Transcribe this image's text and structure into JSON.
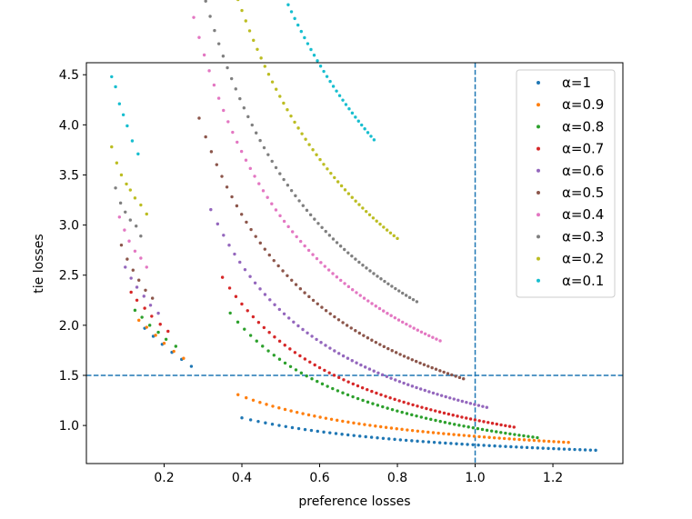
{
  "chart_data": {
    "type": "scatter",
    "title": "",
    "xlabel": "preference losses",
    "ylabel": "tie losses",
    "xlim": [
      0.0,
      1.38
    ],
    "ylim": [
      0.62,
      4.62
    ],
    "xticks": [
      0.2,
      0.4,
      0.6,
      0.8,
      1.0,
      1.2
    ],
    "yticks": [
      1.0,
      1.5,
      2.0,
      2.5,
      3.0,
      3.5,
      4.0,
      4.5
    ],
    "xtick_labels": [
      "0.2",
      "0.4",
      "0.6",
      "0.8",
      "1.0",
      "1.2"
    ],
    "ytick_labels": [
      "1.0",
      "1.5",
      "2.0",
      "2.5",
      "3.0",
      "3.5",
      "4.0",
      "4.5"
    ],
    "reference_lines": [
      {
        "orientation": "vertical",
        "value": 1.0,
        "style": "dashed",
        "color": "#1f77b4"
      },
      {
        "orientation": "horizontal",
        "value": 1.5,
        "style": "dashed",
        "color": "#1f77b4"
      }
    ],
    "legend_position": "top-right",
    "series": [
      {
        "name": "α=1",
        "color": "#1f77b4",
        "curve": {
          "a": 0.3,
          "b": 0.17,
          "c": 0.55,
          "x_start": 0.4,
          "x_end": 1.31
        }
      },
      {
        "name": "α=0.9",
        "color": "#ff7f0e",
        "curve": {
          "a": 0.38,
          "b": 0.112,
          "c": 0.55,
          "x_start": 0.39,
          "x_end": 1.24
        }
      },
      {
        "name": "α=0.8",
        "color": "#2ca02c",
        "curve": {
          "a": 0.7,
          "b": 0.01,
          "c": 0.28,
          "x_start": 0.37,
          "x_end": 1.16
        }
      },
      {
        "name": "α=0.7",
        "color": "#d62728",
        "curve": {
          "a": 0.82,
          "b": 0.018,
          "c": 0.25,
          "x_start": 0.35,
          "x_end": 1.1
        }
      },
      {
        "name": "α=0.6",
        "color": "#9467bd",
        "curve": {
          "a": 1.0,
          "b": 0.022,
          "c": 0.23,
          "x_start": 0.32,
          "x_end": 1.03
        }
      },
      {
        "name": "α=0.5",
        "color": "#8c564b",
        "curve": {
          "a": 1.28,
          "b": 0.041,
          "c": 0.2,
          "x_start": 0.29,
          "x_end": 0.97
        }
      },
      {
        "name": "α=0.4",
        "color": "#e377c2",
        "curve": {
          "a": 1.6,
          "b": 0.051,
          "c": 0.18,
          "x_start": 0.26,
          "x_end": 0.91
        }
      },
      {
        "name": "α=0.3",
        "color": "#7f7f7f",
        "curve": {
          "a": 1.83,
          "b": 0.058,
          "c": 0.22,
          "x_start": 0.23,
          "x_end": 0.85
        }
      },
      {
        "name": "α=0.2",
        "color": "#bcbd22",
        "curve": {
          "a": 2.25,
          "b": 0.06,
          "c": 0.25,
          "x_start": 0.2,
          "x_end": 0.8
        }
      },
      {
        "name": "α=0.1",
        "color": "#17becf",
        "curve": {
          "a": 2.92,
          "b": 0.071,
          "c": 0.25,
          "x_start": 0.2,
          "x_end": 0.74
        }
      }
    ],
    "stragglers": [
      {
        "series": "α=0.1",
        "points": [
          [
            0.065,
            4.48
          ],
          [
            0.075,
            4.38
          ],
          [
            0.085,
            4.21
          ],
          [
            0.095,
            4.1
          ],
          [
            0.105,
            3.99
          ],
          [
            0.118,
            3.84
          ],
          [
            0.133,
            3.71
          ]
        ]
      },
      {
        "series": "α=0.2",
        "points": [
          [
            0.065,
            3.78
          ],
          [
            0.078,
            3.62
          ],
          [
            0.09,
            3.5
          ],
          [
            0.103,
            3.41
          ],
          [
            0.113,
            3.35
          ],
          [
            0.125,
            3.27
          ],
          [
            0.14,
            3.2
          ],
          [
            0.155,
            3.11
          ]
        ]
      },
      {
        "series": "α=0.3",
        "points": [
          [
            0.075,
            3.37
          ],
          [
            0.088,
            3.22
          ],
          [
            0.1,
            3.13
          ],
          [
            0.113,
            3.05
          ],
          [
            0.128,
            2.99
          ],
          [
            0.14,
            2.89
          ]
        ]
      },
      {
        "series": "α=0.4",
        "points": [
          [
            0.085,
            3.08
          ],
          [
            0.098,
            2.95
          ],
          [
            0.11,
            2.84
          ],
          [
            0.125,
            2.74
          ],
          [
            0.14,
            2.67
          ],
          [
            0.155,
            2.58
          ]
        ]
      },
      {
        "series": "α=0.5",
        "points": [
          [
            0.09,
            2.8
          ],
          [
            0.105,
            2.66
          ],
          [
            0.12,
            2.55
          ],
          [
            0.135,
            2.45
          ],
          [
            0.152,
            2.35
          ],
          [
            0.17,
            2.27
          ]
        ]
      },
      {
        "series": "α=0.6",
        "points": [
          [
            0.1,
            2.58
          ],
          [
            0.115,
            2.47
          ],
          [
            0.13,
            2.38
          ],
          [
            0.148,
            2.29
          ],
          [
            0.165,
            2.2
          ],
          [
            0.185,
            2.12
          ]
        ]
      },
      {
        "series": "α=0.7",
        "points": [
          [
            0.115,
            2.33
          ],
          [
            0.13,
            2.25
          ],
          [
            0.15,
            2.17
          ],
          [
            0.168,
            2.09
          ],
          [
            0.19,
            2.01
          ],
          [
            0.21,
            1.94
          ]
        ]
      },
      {
        "series": "α=0.8",
        "points": [
          [
            0.125,
            2.15
          ],
          [
            0.143,
            2.08
          ],
          [
            0.163,
            2.0
          ],
          [
            0.185,
            1.93
          ],
          [
            0.205,
            1.86
          ],
          [
            0.23,
            1.79
          ]
        ]
      },
      {
        "series": "α=0.9",
        "points": [
          [
            0.135,
            2.05
          ],
          [
            0.155,
            1.98
          ],
          [
            0.178,
            1.9
          ],
          [
            0.2,
            1.82
          ],
          [
            0.225,
            1.74
          ],
          [
            0.25,
            1.67
          ]
        ]
      },
      {
        "series": "α=1",
        "points": [
          [
            0.15,
            1.97
          ],
          [
            0.172,
            1.89
          ],
          [
            0.195,
            1.81
          ],
          [
            0.22,
            1.73
          ],
          [
            0.245,
            1.66
          ],
          [
            0.27,
            1.59
          ]
        ]
      }
    ]
  }
}
